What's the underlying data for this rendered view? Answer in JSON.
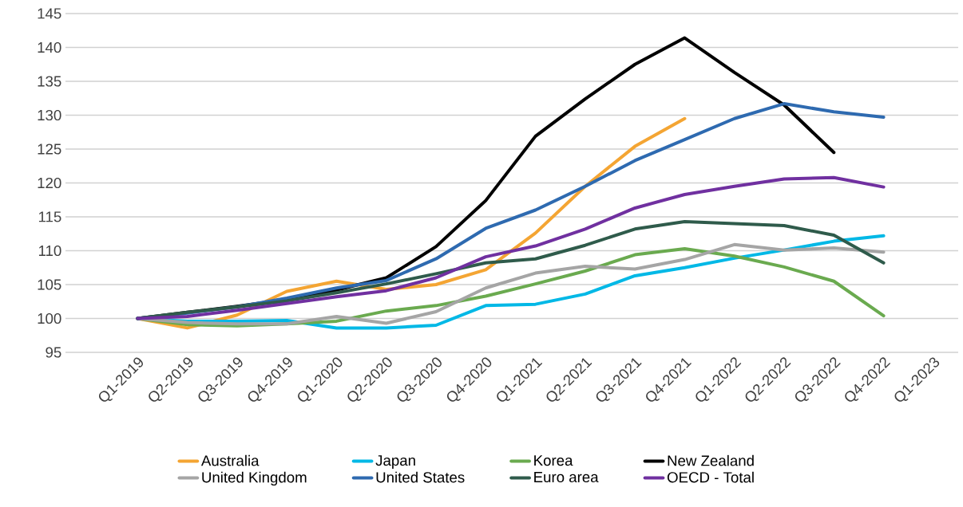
{
  "chart_data": {
    "type": "line",
    "categories": [
      "Q1-2019",
      "Q2-2019",
      "Q3-2019",
      "Q4-2019",
      "Q1-2020",
      "Q2-2020",
      "Q3-2020",
      "Q4-2020",
      "Q1-2021",
      "Q2-2021",
      "Q3-2021",
      "Q4-2021",
      "Q1-2022",
      "Q2-2022",
      "Q3-2022",
      "Q4-2022",
      "Q1-2023"
    ],
    "series": [
      {
        "name": "Australia",
        "color": "#f4a533",
        "values": [
          100,
          98.6,
          100.5,
          104,
          105.5,
          104.3,
          105,
          107.2,
          112.6,
          119.5,
          125.4,
          129.5,
          null,
          null,
          null,
          null,
          null
        ]
      },
      {
        "name": "Japan",
        "color": "#00b8e6",
        "values": [
          100,
          99.6,
          99.6,
          99.7,
          98.6,
          98.6,
          99.0,
          101.9,
          102.1,
          103.6,
          106.3,
          107.5,
          108.9,
          110.1,
          111.4,
          112.2,
          null
        ]
      },
      {
        "name": "Korea",
        "color": "#6aaa4f",
        "values": [
          100,
          99.1,
          98.9,
          99.2,
          99.6,
          101.1,
          101.9,
          103.3,
          105.1,
          107.0,
          109.4,
          110.3,
          109.2,
          107.6,
          105.5,
          100.4,
          null
        ]
      },
      {
        "name": "New Zealand",
        "color": "#000000",
        "values": [
          100,
          100.9,
          101.8,
          102.8,
          104.2,
          106.0,
          110.6,
          117.4,
          126.9,
          132.4,
          137.5,
          141.4,
          136.3,
          131.5,
          124.5,
          null,
          null
        ]
      },
      {
        "name": "United Kingdom",
        "color": "#a5a5a5",
        "values": [
          100,
          99.4,
          99.2,
          99.2,
          100.3,
          99.3,
          101.0,
          104.5,
          106.7,
          107.7,
          107.3,
          108.7,
          110.9,
          110.1,
          110.4,
          109.8,
          null
        ]
      },
      {
        "name": "United States",
        "color": "#2e6ab0",
        "values": [
          100,
          100.8,
          101.7,
          103.0,
          104.5,
          105.6,
          108.8,
          113.3,
          116.0,
          119.5,
          123.3,
          126.4,
          129.5,
          131.7,
          130.5,
          129.7,
          null
        ]
      },
      {
        "name": "Euro area",
        "color": "#2f5b4b",
        "values": [
          100,
          100.9,
          101.7,
          102.6,
          103.8,
          105.1,
          106.6,
          108.2,
          108.8,
          110.8,
          113.2,
          114.3,
          114.0,
          113.7,
          112.3,
          108.2,
          null
        ]
      },
      {
        "name": "OECD - Total",
        "color": "#7030a0",
        "values": [
          100,
          100.3,
          101.2,
          102.2,
          103.2,
          104.1,
          106.0,
          109.1,
          110.7,
          113.2,
          116.3,
          118.3,
          119.5,
          120.6,
          120.8,
          119.4,
          null
        ]
      }
    ],
    "ylim": [
      95,
      145
    ],
    "yticks": [
      95,
      100,
      105,
      110,
      115,
      120,
      125,
      130,
      135,
      140,
      145
    ],
    "grid": "y",
    "legend": "bottom",
    "line_style": "solid"
  }
}
